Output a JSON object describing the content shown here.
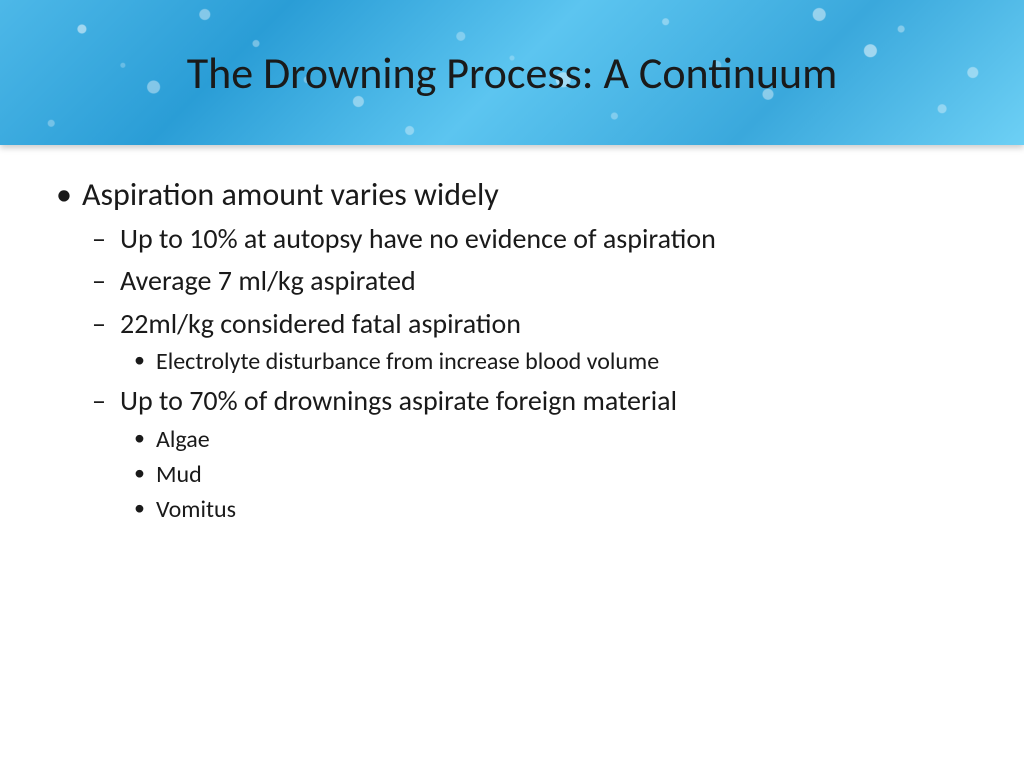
{
  "slide": {
    "title": "The Drowning Process: A Continuum",
    "banner_colors": [
      "#4db8e8",
      "#2a9dd6",
      "#5cc5f0",
      "#3aa8dc",
      "#6dd0f5"
    ],
    "title_color": "#1a1a1a",
    "title_fontsize": 44
  },
  "content": {
    "main_bullet": "Aspiration amount varies widely",
    "sub_bullets": [
      {
        "text": "Up to 10% at autopsy have no evidence of aspiration",
        "children": []
      },
      {
        "text": "Average 7 ml/kg aspirated",
        "children": []
      },
      {
        "text": "22ml/kg considered fatal aspiration",
        "children": [
          "Electrolyte disturbance from increase blood volume"
        ]
      },
      {
        "text": "Up to 70% of drownings aspirate foreign material",
        "children": [
          "Algae",
          "Mud",
          "Vomitus"
        ]
      }
    ],
    "text_color": "#1a1a1a",
    "level1_fontsize": 32,
    "level2_fontsize": 28,
    "level3_fontsize": 24
  },
  "background_color": "#ffffff"
}
